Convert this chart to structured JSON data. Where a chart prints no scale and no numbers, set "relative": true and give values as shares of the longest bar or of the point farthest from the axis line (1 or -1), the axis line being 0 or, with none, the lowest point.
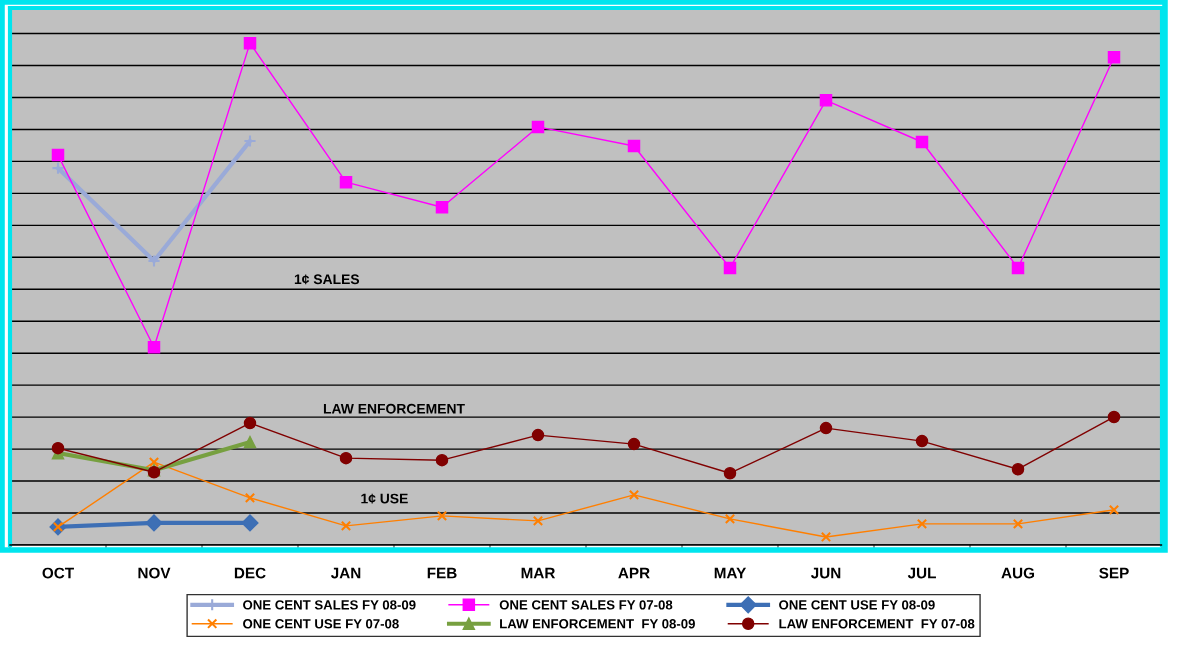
{
  "chart_data": {
    "type": "line",
    "relative": true,
    "grid": "y",
    "legend": "bottom",
    "categories": [
      "OCT",
      "NOV",
      "DEC",
      "JAN",
      "FEB",
      "MAR",
      "APR",
      "MAY",
      "JUN",
      "JUL",
      "AUG",
      "SEP"
    ],
    "annotations": [
      "1¢ SALES",
      "LAW ENFORCEMENT",
      "1¢ USE"
    ],
    "series": [
      {
        "name": "ONE CENT SALES FY 08-09",
        "color": "#9aaad8",
        "marker": "plus",
        "values": [
          0.751,
          0.566,
          0.805,
          null,
          null,
          null,
          null,
          null,
          null,
          null,
          null,
          null
        ]
      },
      {
        "name": "ONE CENT SALES FY 07-08",
        "color": "#ff00ff",
        "marker": "square",
        "values": [
          0.777,
          0.394,
          1.0,
          0.723,
          0.673,
          0.833,
          0.795,
          0.552,
          0.886,
          0.803,
          0.552,
          0.972
        ]
      },
      {
        "name": "ONE CENT USE FY 08-09",
        "color": "#3d6fb5",
        "marker": "diamond",
        "values": [
          0.036,
          0.044,
          0.044,
          null,
          null,
          null,
          null,
          null,
          null,
          null,
          null,
          null
        ]
      },
      {
        "name": "ONE CENT USE FY 07-08",
        "color": "#ff7f00",
        "marker": "cross",
        "values": [
          0.036,
          0.165,
          0.094,
          0.038,
          0.058,
          0.048,
          0.1,
          0.052,
          0.016,
          0.042,
          0.042,
          0.07
        ]
      },
      {
        "name": "LAW ENFORCEMENT  FY 08-09",
        "color": "#77a040",
        "marker": "triangle",
        "values": [
          0.183,
          0.149,
          0.205,
          null,
          null,
          null,
          null,
          null,
          null,
          null,
          null,
          null
        ]
      },
      {
        "name": "LAW ENFORCEMENT  FY 07-08",
        "color": "#800000",
        "marker": "circle",
        "values": [
          0.193,
          0.145,
          0.243,
          0.173,
          0.169,
          0.219,
          0.201,
          0.143,
          0.233,
          0.207,
          0.151,
          0.255
        ]
      }
    ]
  }
}
